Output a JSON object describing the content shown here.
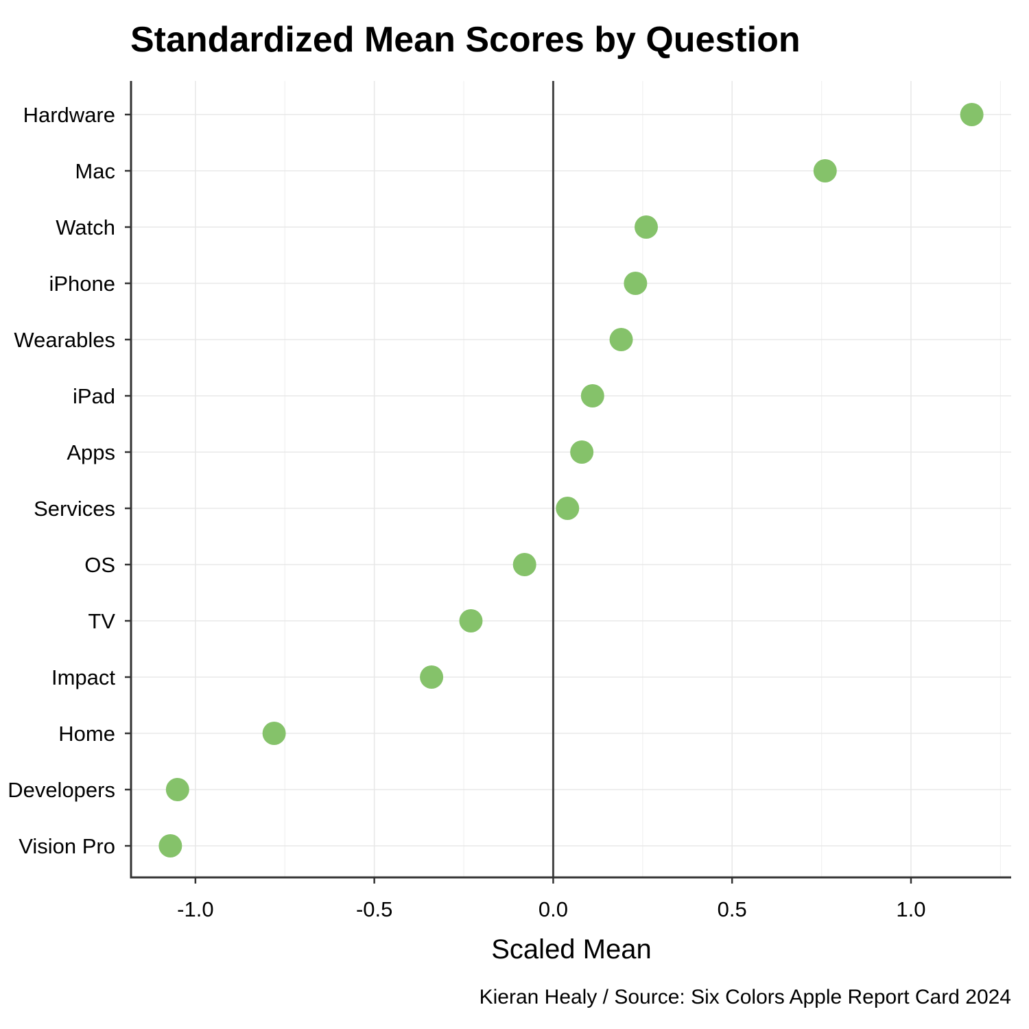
{
  "chart_data": {
    "type": "scatter",
    "title": "Standardized Mean Scores by Question",
    "xlabel": "Scaled Mean",
    "ylabel": "",
    "caption": "Kieran Healy / Source: Six Colors Apple Report Card 2024",
    "xlim": [
      -1.18,
      1.28
    ],
    "x_ticks": [
      -1.0,
      -0.5,
      0.0,
      0.5,
      1.0
    ],
    "x_tick_labels": [
      "-1.0",
      "-0.5",
      "0.0",
      "0.5",
      "1.0"
    ],
    "reference_line_x": 0.0,
    "grid": true,
    "point_color": "#85c26a",
    "categories": [
      "Hardware",
      "Mac",
      "Watch",
      "iPhone",
      "Wearables",
      "iPad",
      "Apps",
      "Services",
      "OS",
      "TV",
      "Impact",
      "Home",
      "Developers",
      "Vision Pro"
    ],
    "values": [
      1.17,
      0.76,
      0.26,
      0.23,
      0.19,
      0.11,
      0.08,
      0.04,
      -0.08,
      -0.23,
      -0.34,
      -0.78,
      -1.05,
      -1.07
    ]
  }
}
